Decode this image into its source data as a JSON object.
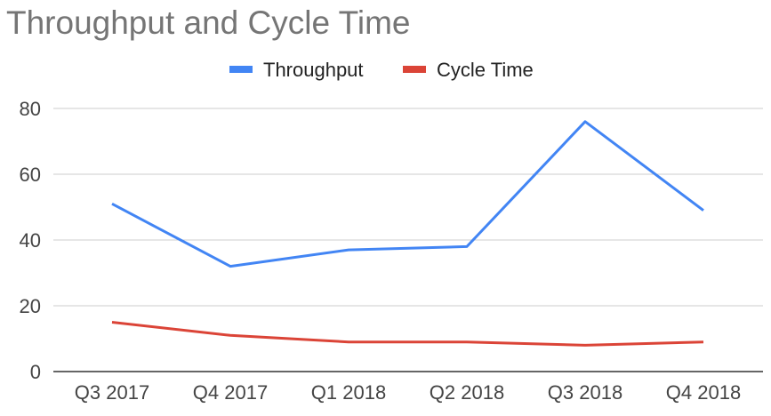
{
  "chart_data": {
    "type": "line",
    "title": "Throughput and Cycle Time",
    "categories": [
      "Q3 2017",
      "Q4 2017",
      "Q1 2018",
      "Q2 2018",
      "Q3 2018",
      "Q4 2018"
    ],
    "series": [
      {
        "name": "Throughput",
        "values": [
          51,
          32,
          37,
          38,
          76,
          49
        ],
        "color": "#4285f4"
      },
      {
        "name": "Cycle Time",
        "values": [
          15,
          11,
          9,
          9,
          8,
          9
        ],
        "color": "#db4437"
      }
    ],
    "ylim": [
      0,
      80
    ],
    "yticks": [
      0,
      20,
      40,
      60,
      80
    ],
    "grid": true,
    "legend": "top-center",
    "colors": {
      "grid": "#cccccc",
      "axis": "#333333",
      "title": "#757575"
    }
  }
}
